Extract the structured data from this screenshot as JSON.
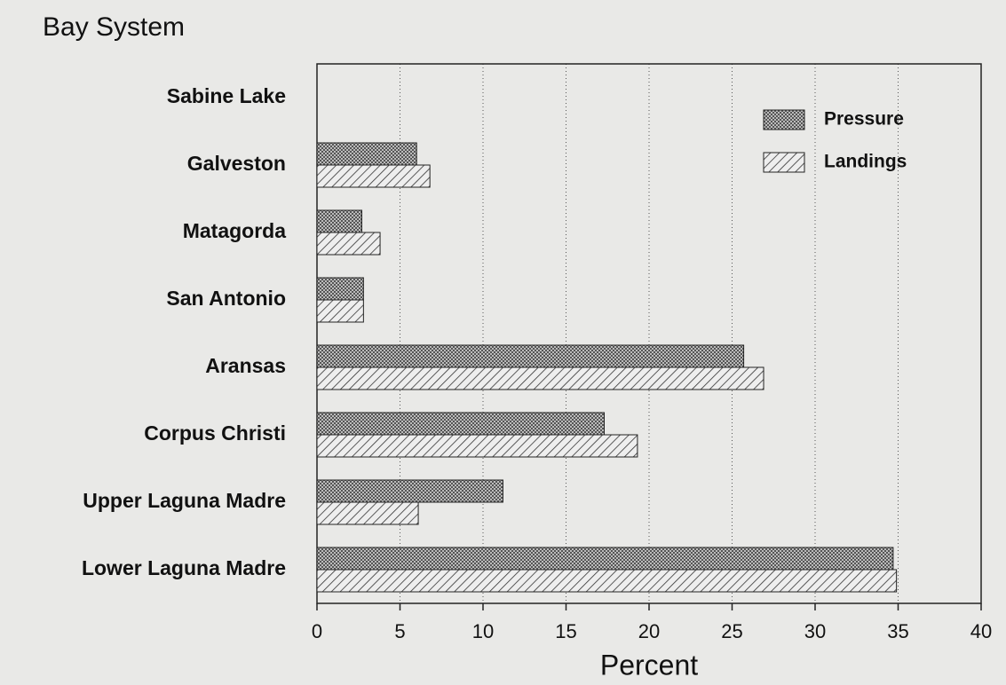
{
  "chart_data": {
    "type": "hbar",
    "title": "Bay System",
    "x_label": "Percent",
    "categories": [
      "Sabine Lake",
      "Galveston",
      "Matagorda",
      "San Antonio",
      "Aransas",
      "Corpus Christi",
      "Upper Laguna Madre",
      "Lower Laguna Madre"
    ],
    "series": [
      {
        "name": "Pressure",
        "color": "#555555",
        "values": [
          0,
          6.0,
          2.7,
          2.8,
          25.7,
          17.3,
          11.2,
          34.7
        ]
      },
      {
        "name": "Landings",
        "color": "#333333",
        "values": [
          0,
          6.8,
          3.8,
          2.8,
          26.9,
          19.3,
          6.1,
          34.9
        ]
      }
    ],
    "xlim": [
      0,
      40
    ],
    "xticks": [
      0,
      5,
      10,
      15,
      20,
      25,
      30,
      35,
      40
    ],
    "grid": true,
    "legend": "upper right"
  }
}
